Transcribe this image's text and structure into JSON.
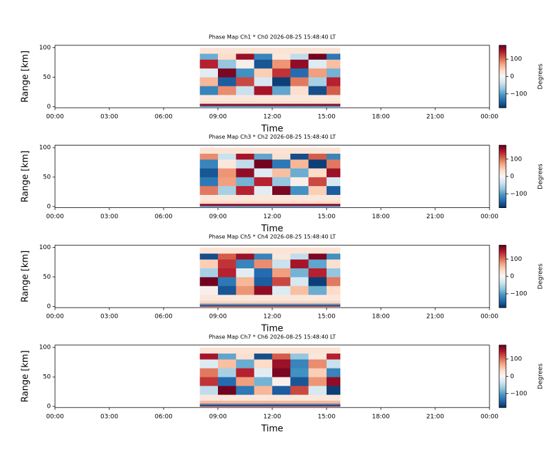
{
  "chart_data": [
    {
      "type": "heatmap",
      "title": "Phase Map Ch1 * Ch0 2026-08-25 15:48:40 LT",
      "xlabel": "Time",
      "ylabel": "Range [km]",
      "colorbar_label": "Degrees",
      "xlim": [
        0,
        24
      ],
      "xticks": [
        {
          "value": 0,
          "label": "00:00"
        },
        {
          "value": 3,
          "label": "03:00"
        },
        {
          "value": 6,
          "label": "06:00"
        },
        {
          "value": 9,
          "label": "09:00"
        },
        {
          "value": 12,
          "label": "12:00"
        },
        {
          "value": 15,
          "label": "15:00"
        },
        {
          "value": 18,
          "label": "18:00"
        },
        {
          "value": 21,
          "label": "21:00"
        },
        {
          "value": 24,
          "label": "00:00"
        }
      ],
      "ylim": [
        -2,
        104
      ],
      "yticks": [
        0,
        50,
        100
      ],
      "clim": [
        -180,
        180
      ],
      "cticks": [
        {
          "value": -100,
          "label": "−100"
        },
        0,
        100
      ],
      "colormap": [
        "#053061",
        "#2166ac",
        "#4393c3",
        "#92c5de",
        "#d1e5f0",
        "#f7f7f7",
        "#fddbc7",
        "#f4a582",
        "#d6604d",
        "#b2182b",
        "#67001f"
      ],
      "xbins": [
        8,
        9,
        10,
        11,
        12,
        13,
        14,
        15,
        15.75
      ],
      "ybins": [
        0,
        2,
        5,
        10,
        20,
        35,
        50,
        65,
        80,
        90,
        100
      ],
      "z": [
        [
          -140,
          -140,
          -140,
          -140,
          -140,
          -140,
          -140,
          -140
        ],
        [
          160,
          160,
          160,
          160,
          160,
          160,
          160,
          160
        ],
        [
          30,
          30,
          30,
          30,
          30,
          30,
          30,
          30
        ],
        [
          20,
          20,
          20,
          20,
          20,
          20,
          20,
          20
        ],
        [
          -120,
          85,
          -40,
          150,
          -95,
          30,
          -160,
          110
        ],
        [
          60,
          -150,
          120,
          -30,
          -170,
          95,
          -60,
          140
        ],
        [
          -20,
          170,
          -110,
          45,
          130,
          -140,
          75,
          -85
        ],
        [
          140,
          -70,
          10,
          -155,
          80,
          160,
          -25,
          55
        ],
        [
          -90,
          35,
          155,
          -120,
          20,
          -45,
          175,
          -130
        ],
        [
          25,
          25,
          25,
          25,
          25,
          25,
          25,
          25
        ]
      ]
    },
    {
      "type": "heatmap",
      "title": "Phase Map Ch3 * Ch2 2026-08-25 15:48:40 LT",
      "xlabel": "Time",
      "ylabel": "Range [km]",
      "colorbar_label": "Degrees",
      "xlim": [
        0,
        24
      ],
      "xticks": [
        {
          "value": 0,
          "label": "00:00"
        },
        {
          "value": 3,
          "label": "03:00"
        },
        {
          "value": 6,
          "label": "06:00"
        },
        {
          "value": 9,
          "label": "09:00"
        },
        {
          "value": 12,
          "label": "12:00"
        },
        {
          "value": 15,
          "label": "15:00"
        },
        {
          "value": 18,
          "label": "18:00"
        },
        {
          "value": 21,
          "label": "21:00"
        },
        {
          "value": 24,
          "label": "00:00"
        }
      ],
      "ylim": [
        -2,
        104
      ],
      "yticks": [
        0,
        50,
        100
      ],
      "clim": [
        -180,
        180
      ],
      "cticks": [
        {
          "value": -100,
          "label": "−100"
        },
        0,
        100
      ],
      "colormap": [
        "#053061",
        "#2166ac",
        "#4393c3",
        "#92c5de",
        "#d1e5f0",
        "#f7f7f7",
        "#fddbc7",
        "#f4a582",
        "#d6604d",
        "#b2182b",
        "#67001f"
      ],
      "xbins": [
        8,
        9,
        10,
        11,
        12,
        13,
        14,
        15,
        15.75
      ],
      "ybins": [
        0,
        2,
        5,
        10,
        20,
        35,
        50,
        65,
        80,
        90,
        100
      ],
      "z": [
        [
          -150,
          -150,
          -150,
          -150,
          -150,
          -150,
          -150,
          -150
        ],
        [
          150,
          150,
          150,
          150,
          150,
          150,
          150,
          150
        ],
        [
          35,
          35,
          35,
          35,
          35,
          35,
          35,
          35
        ],
        [
          20,
          20,
          20,
          20,
          20,
          20,
          20,
          20
        ],
        [
          95,
          -60,
          140,
          -20,
          170,
          -110,
          45,
          -150
        ],
        [
          -130,
          75,
          -85,
          140,
          -70,
          10,
          120,
          -30
        ],
        [
          -155,
          80,
          160,
          -25,
          55,
          -90,
          35,
          155
        ],
        [
          -120,
          20,
          -45,
          175,
          -130,
          60,
          -170,
          95
        ],
        [
          85,
          -40,
          150,
          -95,
          30,
          -160,
          110,
          -120
        ],
        [
          25,
          25,
          25,
          25,
          25,
          25,
          25,
          25
        ]
      ]
    },
    {
      "type": "heatmap",
      "title": "Phase Map Ch5 * Ch4 2026-08-25 15:48:40 LT",
      "xlabel": "Time",
      "ylabel": "Range [km]",
      "colorbar_label": "Degrees",
      "xlim": [
        0,
        24
      ],
      "xticks": [
        {
          "value": 0,
          "label": "00:00"
        },
        {
          "value": 3,
          "label": "03:00"
        },
        {
          "value": 6,
          "label": "06:00"
        },
        {
          "value": 9,
          "label": "09:00"
        },
        {
          "value": 12,
          "label": "12:00"
        },
        {
          "value": 15,
          "label": "15:00"
        },
        {
          "value": 18,
          "label": "18:00"
        },
        {
          "value": 21,
          "label": "21:00"
        },
        {
          "value": 24,
          "label": "00:00"
        }
      ],
      "ylim": [
        -2,
        104
      ],
      "yticks": [
        0,
        50,
        100
      ],
      "clim": [
        -180,
        180
      ],
      "cticks": [
        {
          "value": -100,
          "label": "−100"
        },
        0,
        100
      ],
      "colormap": [
        "#053061",
        "#2166ac",
        "#4393c3",
        "#92c5de",
        "#d1e5f0",
        "#f7f7f7",
        "#fddbc7",
        "#f4a582",
        "#d6604d",
        "#b2182b",
        "#67001f"
      ],
      "xbins": [
        8,
        9,
        10,
        11,
        12,
        13,
        14,
        15,
        15.75
      ],
      "ybins": [
        0,
        2,
        5,
        10,
        20,
        35,
        50,
        65,
        80,
        90,
        100
      ],
      "z": [
        [
          165,
          165,
          165,
          165,
          165,
          165,
          165,
          165
        ],
        [
          -110,
          -110,
          -110,
          -110,
          -110,
          -110,
          -110,
          -110
        ],
        [
          40,
          40,
          40,
          40,
          40,
          40,
          40,
          40
        ],
        [
          20,
          20,
          20,
          20,
          20,
          20,
          20,
          20
        ],
        [
          10,
          -155,
          80,
          160,
          -25,
          55,
          -90,
          35
        ],
        [
          175,
          -130,
          60,
          -150,
          120,
          -30,
          -170,
          95
        ],
        [
          -60,
          140,
          -20,
          -140,
          75,
          -85,
          140,
          -70
        ],
        [
          45,
          130,
          -120,
          85,
          -40,
          150,
          -95,
          30
        ],
        [
          -160,
          110,
          155,
          -120,
          20,
          -45,
          170,
          -110
        ],
        [
          25,
          25,
          25,
          25,
          25,
          25,
          25,
          25
        ]
      ]
    },
    {
      "type": "heatmap",
      "title": "Phase Map Ch7 * Ch6 2026-08-25 15:48:40 LT",
      "xlabel": "Time",
      "ylabel": "Range [km]",
      "colorbar_label": "Degrees",
      "xlim": [
        0,
        24
      ],
      "xticks": [
        {
          "value": 0,
          "label": "00:00"
        },
        {
          "value": 3,
          "label": "03:00"
        },
        {
          "value": 6,
          "label": "06:00"
        },
        {
          "value": 9,
          "label": "09:00"
        },
        {
          "value": 12,
          "label": "12:00"
        },
        {
          "value": 15,
          "label": "15:00"
        },
        {
          "value": 18,
          "label": "18:00"
        },
        {
          "value": 21,
          "label": "21:00"
        },
        {
          "value": 24,
          "label": "00:00"
        }
      ],
      "ylim": [
        -2,
        104
      ],
      "yticks": [
        0,
        50,
        100
      ],
      "clim": [
        -180,
        180
      ],
      "cticks": [
        {
          "value": -100,
          "label": "−100"
        },
        0,
        100
      ],
      "colormap": [
        "#053061",
        "#2166ac",
        "#4393c3",
        "#92c5de",
        "#d1e5f0",
        "#f7f7f7",
        "#fddbc7",
        "#f4a582",
        "#d6604d",
        "#b2182b",
        "#67001f"
      ],
      "xbins": [
        8,
        9,
        10,
        11,
        12,
        13,
        14,
        15,
        15.75
      ],
      "ybins": [
        0,
        2,
        5,
        10,
        20,
        35,
        50,
        65,
        80,
        90,
        100
      ],
      "z": [
        [
          170,
          170,
          170,
          170,
          170,
          170,
          170,
          170
        ],
        [
          -120,
          -120,
          -120,
          -120,
          -120,
          -120,
          -120,
          -120
        ],
        [
          60,
          60,
          60,
          60,
          60,
          60,
          60,
          60
        ],
        [
          20,
          20,
          20,
          20,
          20,
          20,
          20,
          20
        ],
        [
          -45,
          175,
          -130,
          60,
          -150,
          120,
          -30,
          -170
        ],
        [
          130,
          -140,
          75,
          -85,
          10,
          -155,
          80,
          160
        ],
        [
          95,
          -60,
          140,
          -20,
          170,
          -110,
          45,
          -120
        ],
        [
          -25,
          55,
          -90,
          35,
          155,
          -120,
          85,
          -40
        ],
        [
          150,
          -95,
          30,
          -160,
          110,
          -70,
          20,
          140
        ],
        [
          25,
          25,
          25,
          25,
          25,
          25,
          25,
          25
        ]
      ]
    }
  ]
}
